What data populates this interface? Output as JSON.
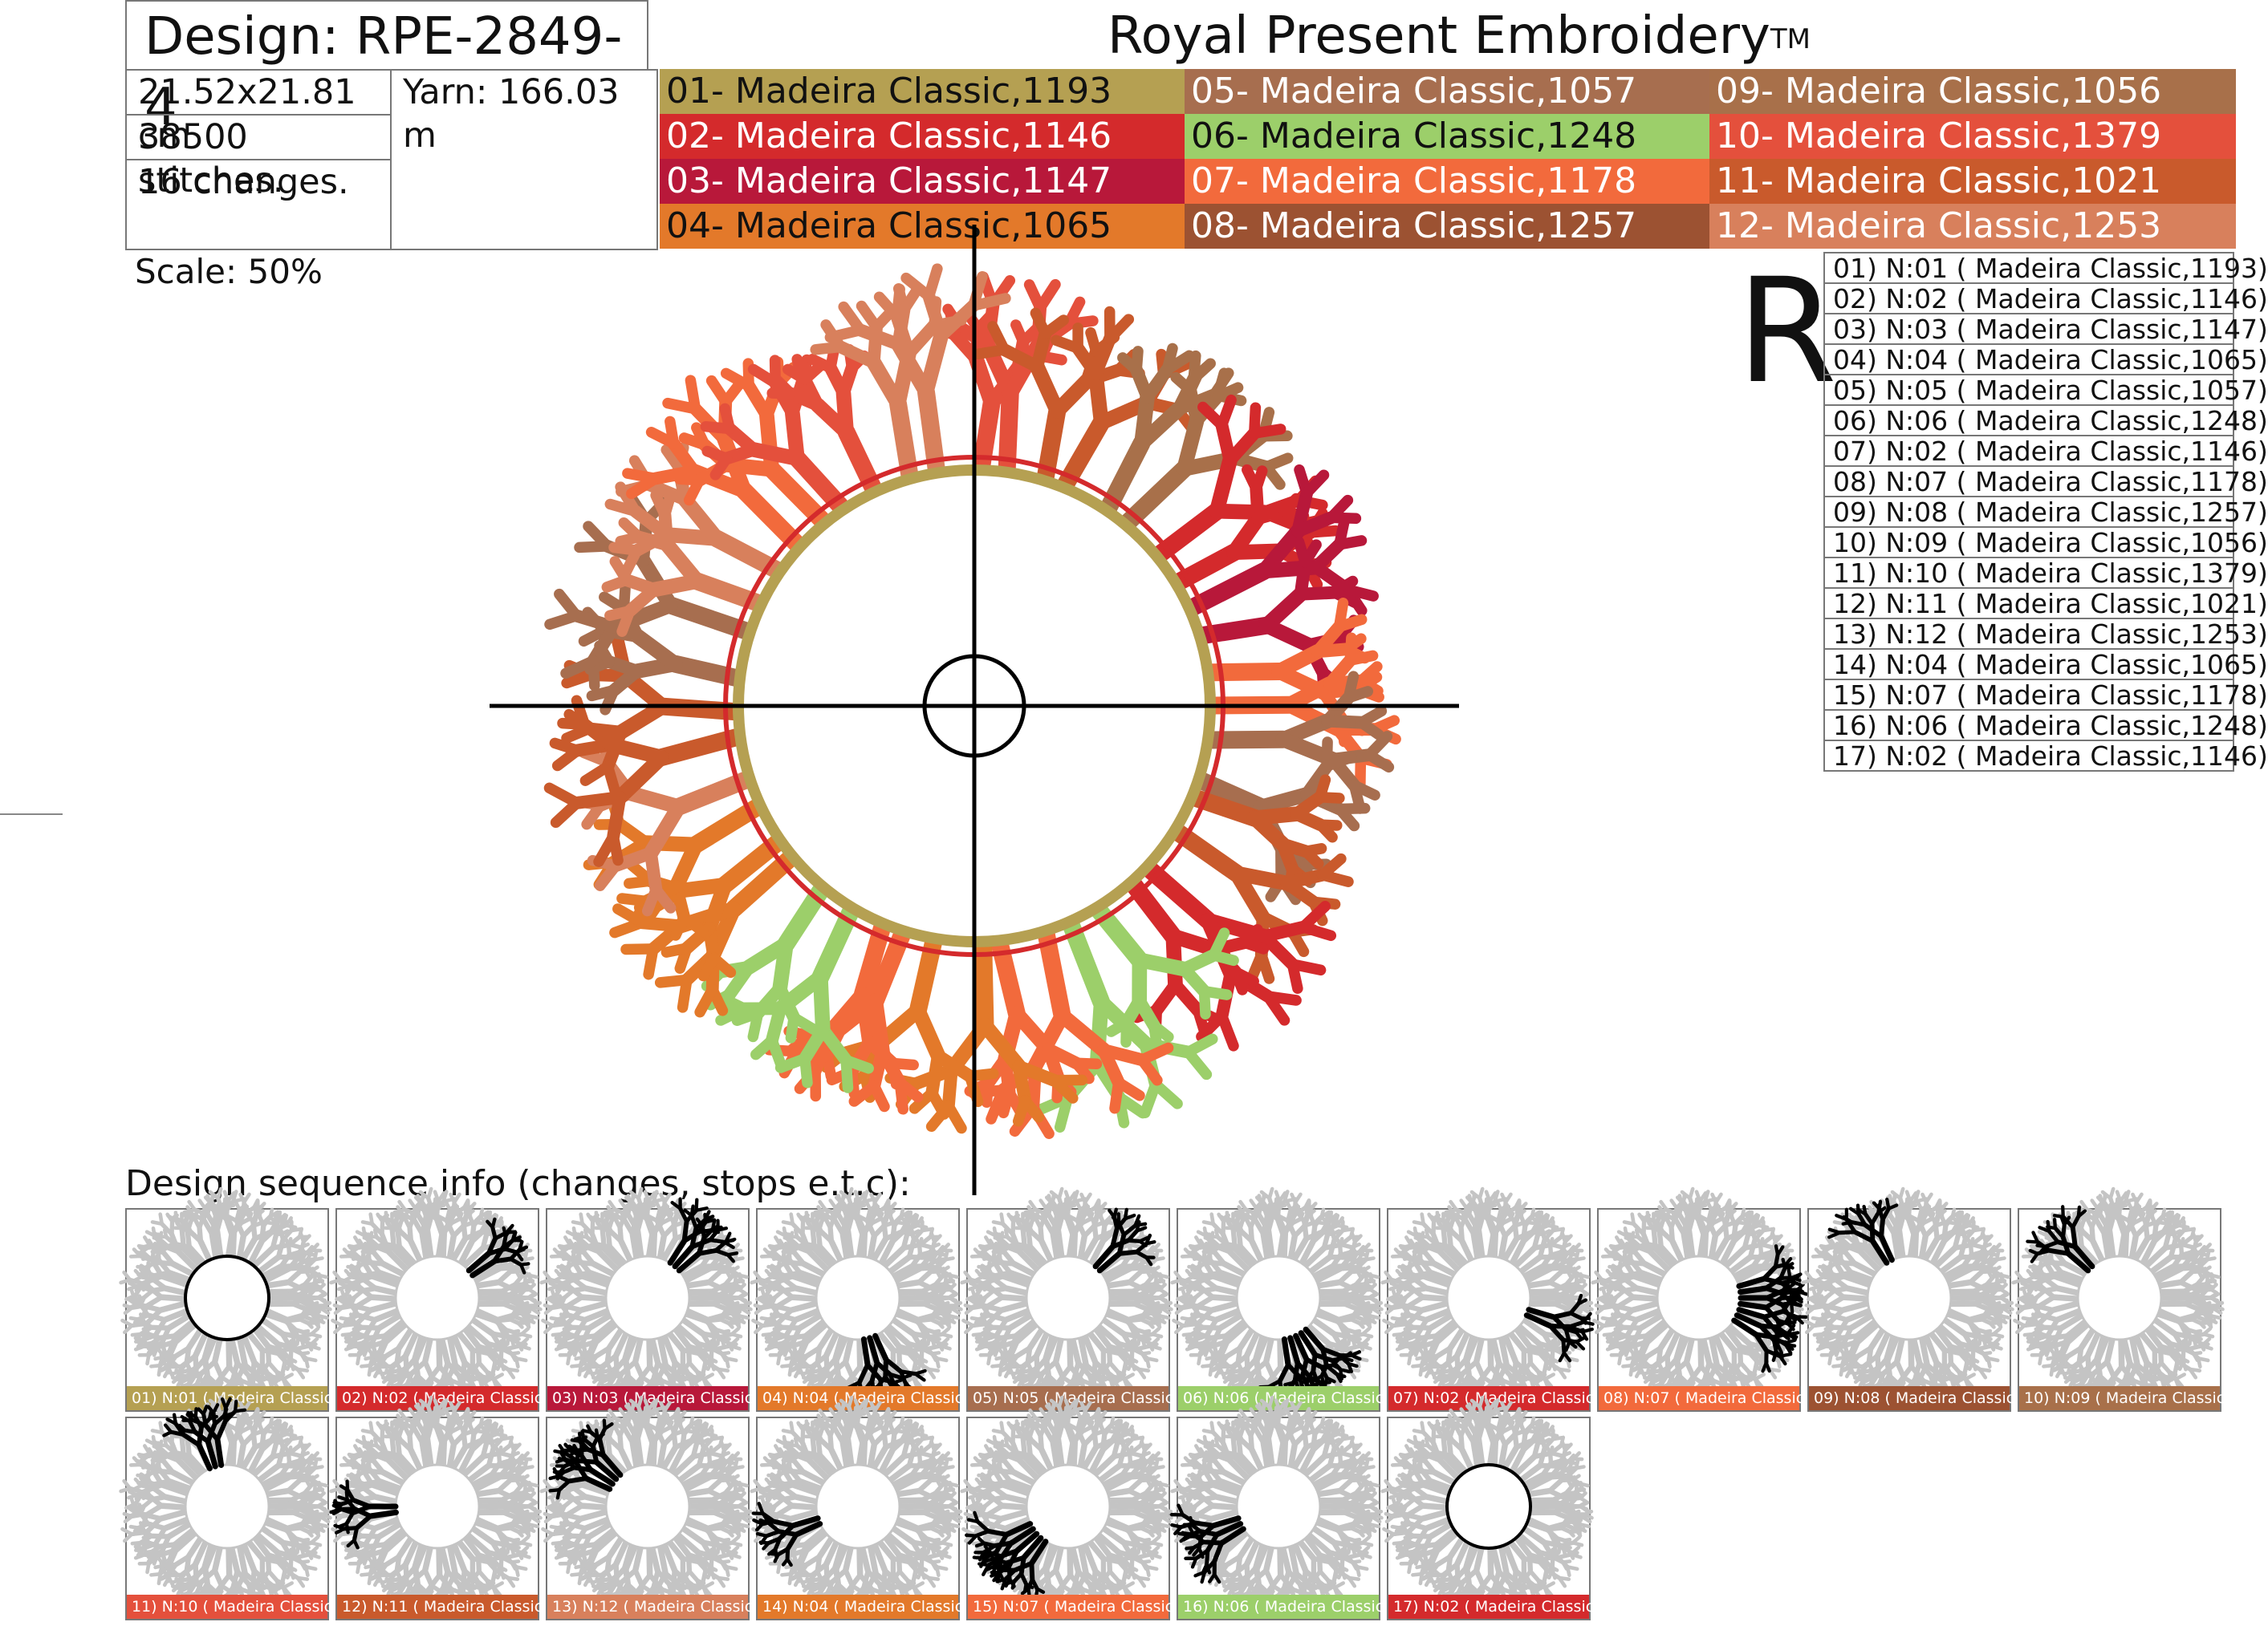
{
  "header": {
    "design_title": "Design: RPE-2849-4",
    "brand": "Royal Present Embroidery",
    "brand_mark": "TM"
  },
  "info": {
    "size": "21.52x21.81 cm",
    "yarn": "Yarn: 166.03 m",
    "stitches": "38500 stitches.",
    "changes": "16 changes."
  },
  "palette": [
    {
      "label": "01- Madeira Classic,1193",
      "color": "#b5a052"
    },
    {
      "label": "02- Madeira Classic,1146",
      "color": "#d42a2c"
    },
    {
      "label": "03- Madeira Classic,1147",
      "color": "#b8183a"
    },
    {
      "label": "04- Madeira Classic,1065",
      "color": "#e3792a"
    },
    {
      "label": "05- Madeira Classic,1057",
      "color": "#a76e4f"
    },
    {
      "label": "06- Madeira Classic,1248",
      "color": "#9ccf6a"
    },
    {
      "label": "07- Madeira Classic,1178",
      "color": "#f26a3c"
    },
    {
      "label": "08- Madeira Classic,1257",
      "color": "#9c5232"
    },
    {
      "label": "09- Madeira Classic,1056",
      "color": "#a8704a"
    },
    {
      "label": "10- Madeira Classic,1379",
      "color": "#e4503c"
    },
    {
      "label": "11- Madeira Classic,1021",
      "color": "#c95a2c"
    },
    {
      "label": "12- Madeira Classic,1253",
      "color": "#d8805c"
    }
  ],
  "scale": "Scale: 50%",
  "r_letter": "R",
  "sequence": [
    "01) N:01 ( Madeira Classic,1193)",
    "02) N:02 ( Madeira Classic,1146)",
    "03) N:03 ( Madeira Classic,1147)",
    "04) N:04 ( Madeira Classic,1065)",
    "05) N:05 ( Madeira Classic,1057)",
    "06) N:06 ( Madeira Classic,1248)",
    "07) N:02 ( Madeira Classic,1146)",
    "08) N:07 ( Madeira Classic,1178)",
    "09) N:08 ( Madeira Classic,1257)",
    "10) N:09 ( Madeira Classic,1056)",
    "11) N:10 ( Madeira Classic,1379)",
    "12) N:11 ( Madeira Classic,1021)",
    "13) N:12 ( Madeira Classic,1253)",
    "14) N:04 ( Madeira Classic,1065)",
    "15) N:07 ( Madeira Classic,1178)",
    "16) N:06 ( Madeira Classic,1248)",
    "17) N:02 ( Madeira Classic,1146)"
  ],
  "sequence_label": "Design sequence info (changes, stops e.t.c):",
  "thumbs": [
    {
      "caption": "01) N:01 ( Madeira Classic,1",
      "color": "#b5a052"
    },
    {
      "caption": "02) N:02 ( Madeira Classic,",
      "color": "#d42a2c"
    },
    {
      "caption": "03) N:03 ( Madeira Classic",
      "color": "#b8183a"
    },
    {
      "caption": "04) N:04 ( Madeira Classic",
      "color": "#e3792a"
    },
    {
      "caption": "05) N:05 ( Madeira Classic",
      "color": "#a76e4f"
    },
    {
      "caption": "06) N:06 ( Madeira Classic,",
      "color": "#9ccf6a"
    },
    {
      "caption": "07) N:02 ( Madeira Classic",
      "color": "#d42a2c"
    },
    {
      "caption": "08) N:07 ( Madeira Classic",
      "color": "#f26a3c"
    },
    {
      "caption": "09) N:08 ( Madeira Classic",
      "color": "#9c5232"
    },
    {
      "caption": "10) N:09 ( Madeira Classic,",
      "color": "#a8704a"
    },
    {
      "caption": "11) N:10 ( Madeira Classic,1",
      "color": "#e4503c"
    },
    {
      "caption": "12) N:11 ( Madeira Classic,1",
      "color": "#c95a2c"
    },
    {
      "caption": "13) N:12 ( Madeira Classic,1",
      "color": "#d8805c"
    },
    {
      "caption": "14) N:04 ( Madeira Classic,",
      "color": "#e3792a"
    },
    {
      "caption": "15) N:07 ( Madeira Classic,",
      "color": "#f26a3c"
    },
    {
      "caption": "16) N:06 ( Madeira Classic,",
      "color": "#9ccf6a"
    },
    {
      "caption": "17) N:02 ( Madeira Classic,",
      "color": "#d42a2c"
    }
  ]
}
